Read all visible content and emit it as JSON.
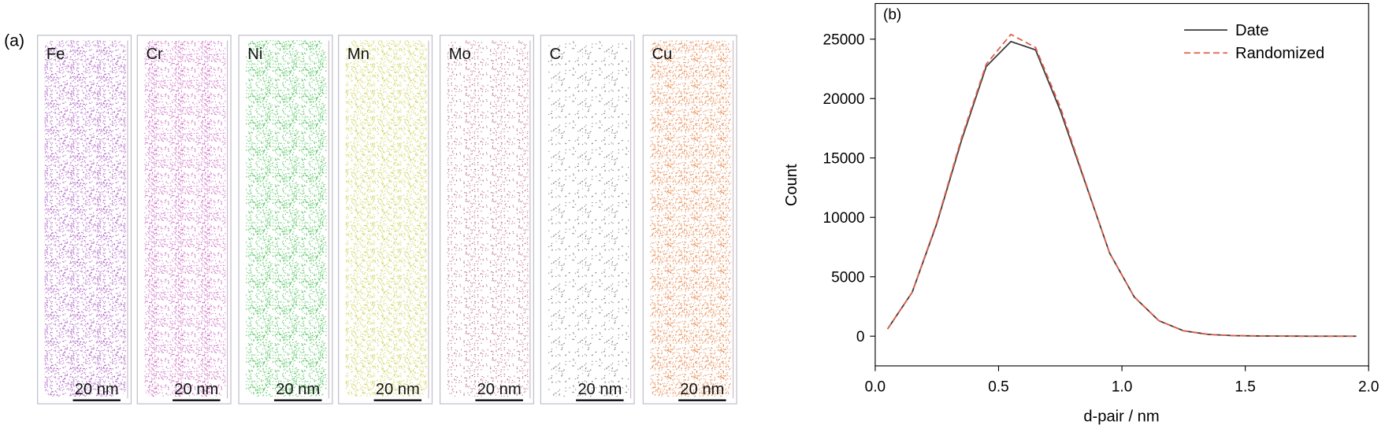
{
  "panel_a": {
    "label": "(a)",
    "maps": [
      {
        "element": "Fe",
        "scale_bar": "20 nm",
        "color": "#9b3fb5"
      },
      {
        "element": "Cr",
        "scale_bar": "20 nm",
        "color": "#c353b8"
      },
      {
        "element": "Ni",
        "scale_bar": "20 nm",
        "color": "#2fb83f"
      },
      {
        "element": "Mn",
        "scale_bar": "20 nm",
        "color": "#c8c83a"
      },
      {
        "element": "Mo",
        "scale_bar": "20 nm",
        "color": "#a8406a"
      },
      {
        "element": "C",
        "scale_bar": "20 nm",
        "color": "#555555"
      },
      {
        "element": "Cu",
        "scale_bar": "20 nm",
        "color": "#e0702a"
      }
    ]
  },
  "chart_data": {
    "type": "line",
    "label": "(b)",
    "xlabel": "d-pair / nm",
    "ylabel": "Count",
    "x": [
      0.05,
      0.15,
      0.25,
      0.35,
      0.45,
      0.55,
      0.65,
      0.75,
      0.85,
      0.95,
      1.05,
      1.15,
      1.25,
      1.35,
      1.45,
      1.55,
      1.65,
      1.75,
      1.85,
      1.95
    ],
    "series": [
      {
        "name": "Date",
        "color": "#3a3a3a",
        "dash": false,
        "values": [
          600,
          3700,
          9500,
          16500,
          22700,
          24800,
          24100,
          19000,
          13000,
          7000,
          3300,
          1300,
          450,
          150,
          50,
          20,
          5,
          0,
          0,
          0
        ]
      },
      {
        "name": "Randomized",
        "color": "#e0604a",
        "dash": true,
        "values": [
          600,
          3700,
          9600,
          16700,
          22900,
          25400,
          24300,
          19300,
          13100,
          7000,
          3300,
          1300,
          450,
          150,
          50,
          20,
          5,
          0,
          0,
          0
        ]
      }
    ],
    "xlim": [
      0,
      2
    ],
    "xticks": [
      {
        "value": 0,
        "label": "0.0"
      },
      0.5,
      {
        "value": 1,
        "label": "1.0"
      },
      1.5,
      {
        "value": 2,
        "label": "2.0"
      }
    ],
    "ylim": [
      -2500,
      28000
    ],
    "yticks": [
      0,
      5000,
      10000,
      15000,
      20000,
      25000
    ],
    "grid": false,
    "legend": "upper-right"
  }
}
